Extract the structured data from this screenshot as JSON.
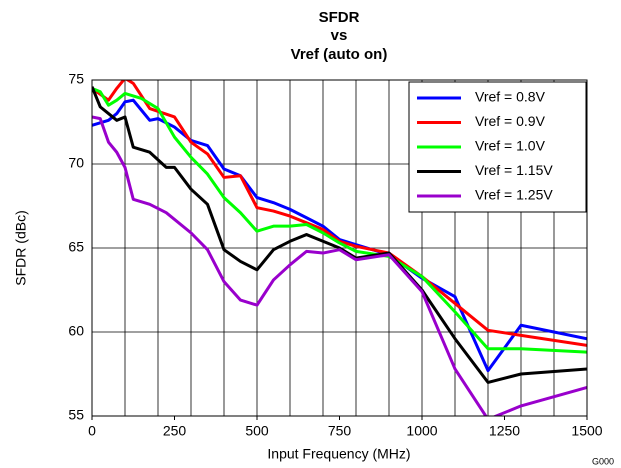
{
  "chart_data": {
    "type": "line",
    "title": [
      "SFDR",
      "vs",
      "Vref (auto on)"
    ],
    "x_label": "Input Frequency (MHz)",
    "y_label": "SFDR (dBc)",
    "corner_label": "G000",
    "xlim": [
      0,
      1500
    ],
    "xticks": [
      0,
      250,
      500,
      750,
      1000,
      1250,
      1500
    ],
    "xgrid": [
      0,
      100,
      200,
      300,
      400,
      500,
      600,
      700,
      800,
      900,
      1000,
      1100,
      1200,
      1300,
      1400,
      1500
    ],
    "ylim": [
      55,
      75
    ],
    "yticks": [
      55,
      60,
      65,
      70,
      75
    ],
    "grid": true,
    "legend": "upper right",
    "series": [
      {
        "name": "Vref = 0.8V",
        "color": "#0000ff",
        "x": [
          0,
          50,
          75,
          100,
          125,
          150,
          175,
          200,
          250,
          300,
          350,
          400,
          450,
          500,
          550,
          600,
          650,
          700,
          750,
          800,
          900,
          1000,
          1100,
          1200,
          1300,
          1500
        ],
        "values": [
          72.3,
          72.6,
          73,
          73.7,
          73.8,
          73.2,
          72.6,
          72.7,
          72.2,
          71.4,
          71.1,
          69.7,
          69.3,
          68,
          67.7,
          67.3,
          66.8,
          66.3,
          65.5,
          65.2,
          64.6,
          63.2,
          62.1,
          57.7,
          60.4,
          59.6
        ]
      },
      {
        "name": "Vref = 0.9V",
        "color": "#ff0000",
        "x": [
          0,
          50,
          75,
          100,
          125,
          175,
          250,
          300,
          350,
          400,
          450,
          500,
          550,
          600,
          650,
          700,
          750,
          800,
          900,
          1000,
          1100,
          1200,
          1300,
          1500
        ],
        "values": [
          74.5,
          73.8,
          74.5,
          75.1,
          74.8,
          73.3,
          72.8,
          71.3,
          70.6,
          69.2,
          69.3,
          67.4,
          67.2,
          66.9,
          66.5,
          66.1,
          65.4,
          65.1,
          64.7,
          63.3,
          61.7,
          60.1,
          59.8,
          59.2
        ]
      },
      {
        "name": "Vref = 1.0V",
        "color": "#00ff00",
        "x": [
          0,
          25,
          50,
          75,
          100,
          150,
          200,
          250,
          300,
          350,
          400,
          450,
          500,
          550,
          600,
          650,
          700,
          750,
          800,
          900,
          1000,
          1100,
          1200,
          1300,
          1500
        ],
        "values": [
          74.5,
          74.3,
          73.5,
          73.8,
          74.2,
          73.9,
          73.3,
          71.6,
          70.4,
          69.4,
          68,
          67.1,
          66,
          66.3,
          66.3,
          66.4,
          65.9,
          65.3,
          64.8,
          64.5,
          63.3,
          61.2,
          59,
          59,
          58.8
        ]
      },
      {
        "name": "Vref = 1.15V",
        "color": "#000000",
        "x": [
          0,
          25,
          50,
          75,
          100,
          125,
          175,
          225,
          250,
          300,
          350,
          400,
          450,
          500,
          550,
          600,
          650,
          700,
          750,
          800,
          900,
          1000,
          1100,
          1200,
          1300,
          1500
        ],
        "values": [
          74.6,
          73.4,
          73,
          72.6,
          72.8,
          71,
          70.7,
          69.8,
          69.8,
          68.5,
          67.6,
          64.9,
          64.2,
          63.7,
          64.9,
          65.4,
          65.8,
          65.4,
          65,
          64.4,
          64.7,
          62.5,
          59.6,
          57,
          57.5,
          57.8
        ]
      },
      {
        "name": "Vref = 1.25V",
        "color": "#9900cc",
        "x": [
          0,
          25,
          50,
          75,
          100,
          125,
          175,
          225,
          300,
          350,
          400,
          450,
          500,
          550,
          600,
          650,
          700,
          750,
          800,
          900,
          1000,
          1100,
          1200,
          1300,
          1500
        ],
        "values": [
          72.8,
          72.7,
          71.3,
          70.7,
          69.8,
          67.9,
          67.6,
          67.1,
          65.9,
          64.9,
          63,
          61.9,
          61.6,
          63.1,
          64,
          64.8,
          64.7,
          64.9,
          64.3,
          64.6,
          62.4,
          57.8,
          54.8,
          55.6,
          56.7
        ]
      }
    ]
  }
}
